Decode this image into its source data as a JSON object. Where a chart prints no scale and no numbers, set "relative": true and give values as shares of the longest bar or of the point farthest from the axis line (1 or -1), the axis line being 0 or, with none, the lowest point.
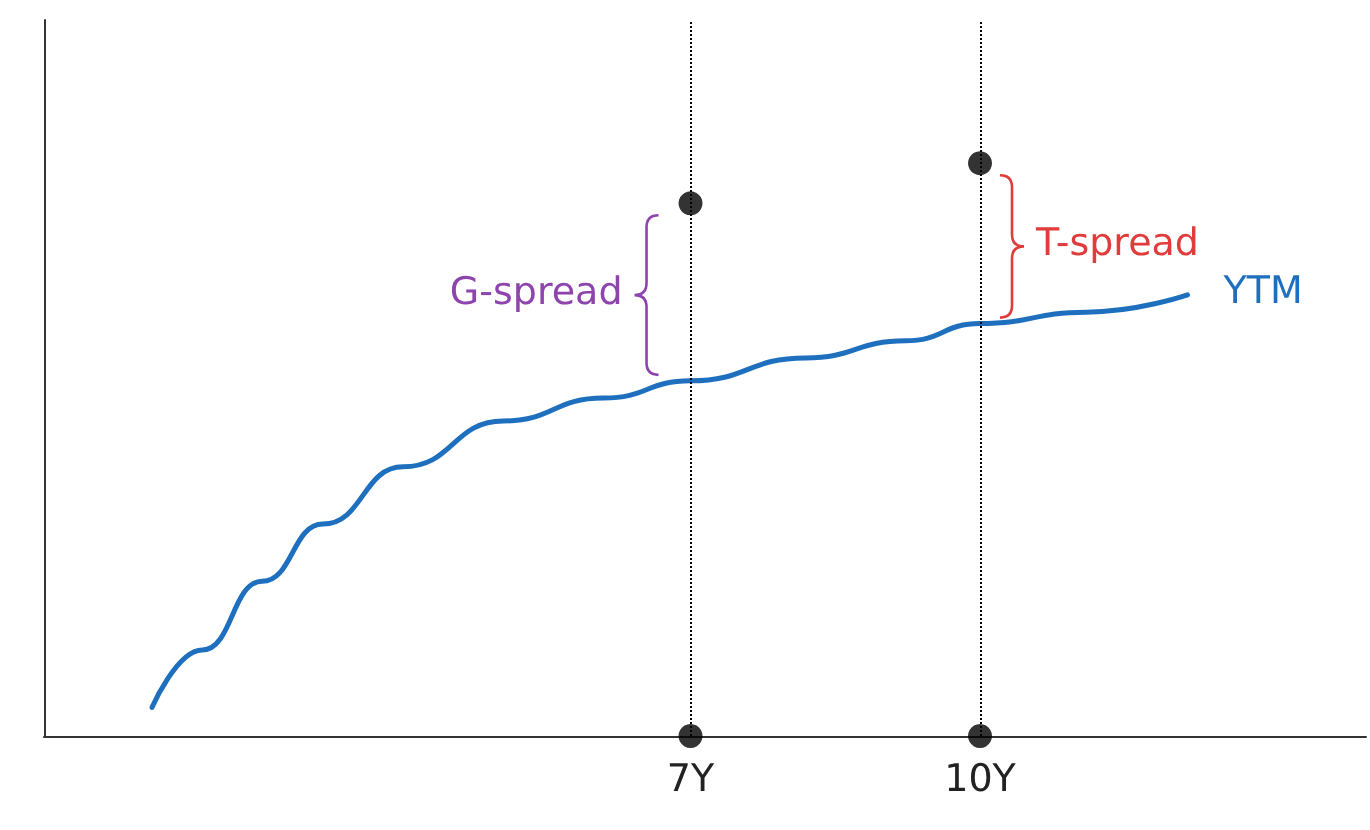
{
  "chart_data": {
    "type": "line",
    "relative": true,
    "xlim": [
      0.3,
      14
    ],
    "xticks": [
      {
        "value": 7,
        "label": "7Y"
      },
      {
        "value": 10,
        "label": "10Y"
      }
    ],
    "grid": false,
    "legend": false,
    "series": [
      {
        "name": "YTM",
        "color": "#1f6fbf",
        "x": [
          1.42,
          1.94,
          2.56,
          3.19,
          4.02,
          5.06,
          6.1,
          7,
          8.19,
          9.23,
          10,
          11.1,
          12.15
        ],
        "values": [
          0.05,
          0.15,
          0.27,
          0.37,
          0.47,
          0.55,
          0.59,
          0.62,
          0.66,
          0.69,
          0.72,
          0.74,
          0.77
        ]
      },
      {
        "type": "scatter",
        "color": "#000000",
        "x": [
          7,
          10
        ],
        "values": [
          0.93,
          1.0
        ]
      },
      {
        "type": "scatter",
        "color": "#000000",
        "x": [
          7,
          10
        ],
        "values": [
          0,
          0
        ]
      }
    ],
    "ref_lines": [
      {
        "axis": "x",
        "value": 7,
        "color": "#000000",
        "line_style": "dotted"
      },
      {
        "axis": "x",
        "value": 10,
        "color": "#000000",
        "line_style": "dotted"
      }
    ],
    "annotations": [
      {
        "text": "G-spread",
        "x": 7,
        "y": 0.775
      },
      {
        "text": "T-spread",
        "x": 10,
        "y": 0.86
      }
    ]
  }
}
